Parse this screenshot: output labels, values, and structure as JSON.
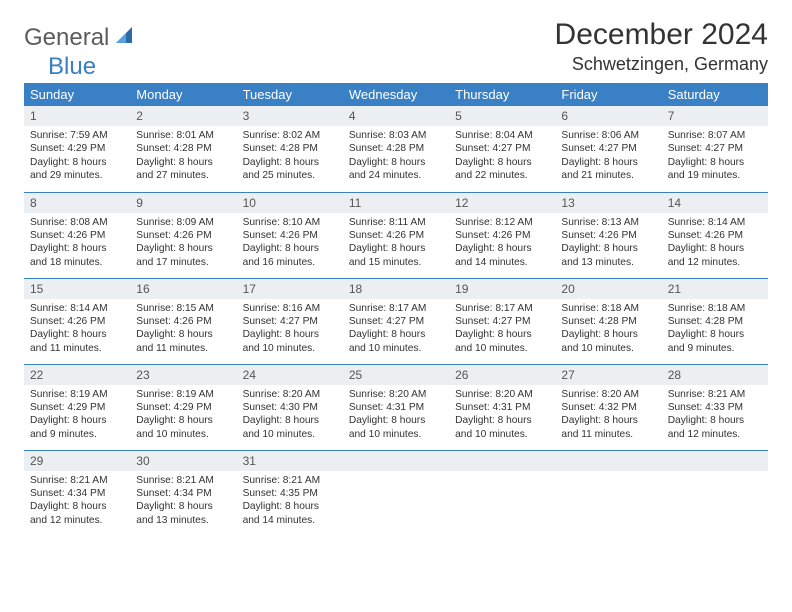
{
  "brand": {
    "word1": "General",
    "word2": "Blue"
  },
  "title": "December 2024",
  "location": "Schwetzingen, Germany",
  "colors": {
    "header_bg": "#3a80c4",
    "header_text": "#ffffff",
    "daynum_bg": "#eceff1",
    "border": "#3a80c4",
    "brand_gray": "#5c5c5c",
    "brand_blue": "#3a7fbf"
  },
  "daynames": [
    "Sunday",
    "Monday",
    "Tuesday",
    "Wednesday",
    "Thursday",
    "Friday",
    "Saturday"
  ],
  "weeks": [
    [
      {
        "n": "1",
        "sr": "Sunrise: 7:59 AM",
        "ss": "Sunset: 4:29 PM",
        "dl": "Daylight: 8 hours and 29 minutes."
      },
      {
        "n": "2",
        "sr": "Sunrise: 8:01 AM",
        "ss": "Sunset: 4:28 PM",
        "dl": "Daylight: 8 hours and 27 minutes."
      },
      {
        "n": "3",
        "sr": "Sunrise: 8:02 AM",
        "ss": "Sunset: 4:28 PM",
        "dl": "Daylight: 8 hours and 25 minutes."
      },
      {
        "n": "4",
        "sr": "Sunrise: 8:03 AM",
        "ss": "Sunset: 4:28 PM",
        "dl": "Daylight: 8 hours and 24 minutes."
      },
      {
        "n": "5",
        "sr": "Sunrise: 8:04 AM",
        "ss": "Sunset: 4:27 PM",
        "dl": "Daylight: 8 hours and 22 minutes."
      },
      {
        "n": "6",
        "sr": "Sunrise: 8:06 AM",
        "ss": "Sunset: 4:27 PM",
        "dl": "Daylight: 8 hours and 21 minutes."
      },
      {
        "n": "7",
        "sr": "Sunrise: 8:07 AM",
        "ss": "Sunset: 4:27 PM",
        "dl": "Daylight: 8 hours and 19 minutes."
      }
    ],
    [
      {
        "n": "8",
        "sr": "Sunrise: 8:08 AM",
        "ss": "Sunset: 4:26 PM",
        "dl": "Daylight: 8 hours and 18 minutes."
      },
      {
        "n": "9",
        "sr": "Sunrise: 8:09 AM",
        "ss": "Sunset: 4:26 PM",
        "dl": "Daylight: 8 hours and 17 minutes."
      },
      {
        "n": "10",
        "sr": "Sunrise: 8:10 AM",
        "ss": "Sunset: 4:26 PM",
        "dl": "Daylight: 8 hours and 16 minutes."
      },
      {
        "n": "11",
        "sr": "Sunrise: 8:11 AM",
        "ss": "Sunset: 4:26 PM",
        "dl": "Daylight: 8 hours and 15 minutes."
      },
      {
        "n": "12",
        "sr": "Sunrise: 8:12 AM",
        "ss": "Sunset: 4:26 PM",
        "dl": "Daylight: 8 hours and 14 minutes."
      },
      {
        "n": "13",
        "sr": "Sunrise: 8:13 AM",
        "ss": "Sunset: 4:26 PM",
        "dl": "Daylight: 8 hours and 13 minutes."
      },
      {
        "n": "14",
        "sr": "Sunrise: 8:14 AM",
        "ss": "Sunset: 4:26 PM",
        "dl": "Daylight: 8 hours and 12 minutes."
      }
    ],
    [
      {
        "n": "15",
        "sr": "Sunrise: 8:14 AM",
        "ss": "Sunset: 4:26 PM",
        "dl": "Daylight: 8 hours and 11 minutes."
      },
      {
        "n": "16",
        "sr": "Sunrise: 8:15 AM",
        "ss": "Sunset: 4:26 PM",
        "dl": "Daylight: 8 hours and 11 minutes."
      },
      {
        "n": "17",
        "sr": "Sunrise: 8:16 AM",
        "ss": "Sunset: 4:27 PM",
        "dl": "Daylight: 8 hours and 10 minutes."
      },
      {
        "n": "18",
        "sr": "Sunrise: 8:17 AM",
        "ss": "Sunset: 4:27 PM",
        "dl": "Daylight: 8 hours and 10 minutes."
      },
      {
        "n": "19",
        "sr": "Sunrise: 8:17 AM",
        "ss": "Sunset: 4:27 PM",
        "dl": "Daylight: 8 hours and 10 minutes."
      },
      {
        "n": "20",
        "sr": "Sunrise: 8:18 AM",
        "ss": "Sunset: 4:28 PM",
        "dl": "Daylight: 8 hours and 10 minutes."
      },
      {
        "n": "21",
        "sr": "Sunrise: 8:18 AM",
        "ss": "Sunset: 4:28 PM",
        "dl": "Daylight: 8 hours and 9 minutes."
      }
    ],
    [
      {
        "n": "22",
        "sr": "Sunrise: 8:19 AM",
        "ss": "Sunset: 4:29 PM",
        "dl": "Daylight: 8 hours and 9 minutes."
      },
      {
        "n": "23",
        "sr": "Sunrise: 8:19 AM",
        "ss": "Sunset: 4:29 PM",
        "dl": "Daylight: 8 hours and 10 minutes."
      },
      {
        "n": "24",
        "sr": "Sunrise: 8:20 AM",
        "ss": "Sunset: 4:30 PM",
        "dl": "Daylight: 8 hours and 10 minutes."
      },
      {
        "n": "25",
        "sr": "Sunrise: 8:20 AM",
        "ss": "Sunset: 4:31 PM",
        "dl": "Daylight: 8 hours and 10 minutes."
      },
      {
        "n": "26",
        "sr": "Sunrise: 8:20 AM",
        "ss": "Sunset: 4:31 PM",
        "dl": "Daylight: 8 hours and 10 minutes."
      },
      {
        "n": "27",
        "sr": "Sunrise: 8:20 AM",
        "ss": "Sunset: 4:32 PM",
        "dl": "Daylight: 8 hours and 11 minutes."
      },
      {
        "n": "28",
        "sr": "Sunrise: 8:21 AM",
        "ss": "Sunset: 4:33 PM",
        "dl": "Daylight: 8 hours and 12 minutes."
      }
    ],
    [
      {
        "n": "29",
        "sr": "Sunrise: 8:21 AM",
        "ss": "Sunset: 4:34 PM",
        "dl": "Daylight: 8 hours and 12 minutes."
      },
      {
        "n": "30",
        "sr": "Sunrise: 8:21 AM",
        "ss": "Sunset: 4:34 PM",
        "dl": "Daylight: 8 hours and 13 minutes."
      },
      {
        "n": "31",
        "sr": "Sunrise: 8:21 AM",
        "ss": "Sunset: 4:35 PM",
        "dl": "Daylight: 8 hours and 14 minutes."
      },
      {
        "n": "",
        "sr": "",
        "ss": "",
        "dl": "",
        "empty": true
      },
      {
        "n": "",
        "sr": "",
        "ss": "",
        "dl": "",
        "empty": true
      },
      {
        "n": "",
        "sr": "",
        "ss": "",
        "dl": "",
        "empty": true
      },
      {
        "n": "",
        "sr": "",
        "ss": "",
        "dl": "",
        "empty": true
      }
    ]
  ]
}
